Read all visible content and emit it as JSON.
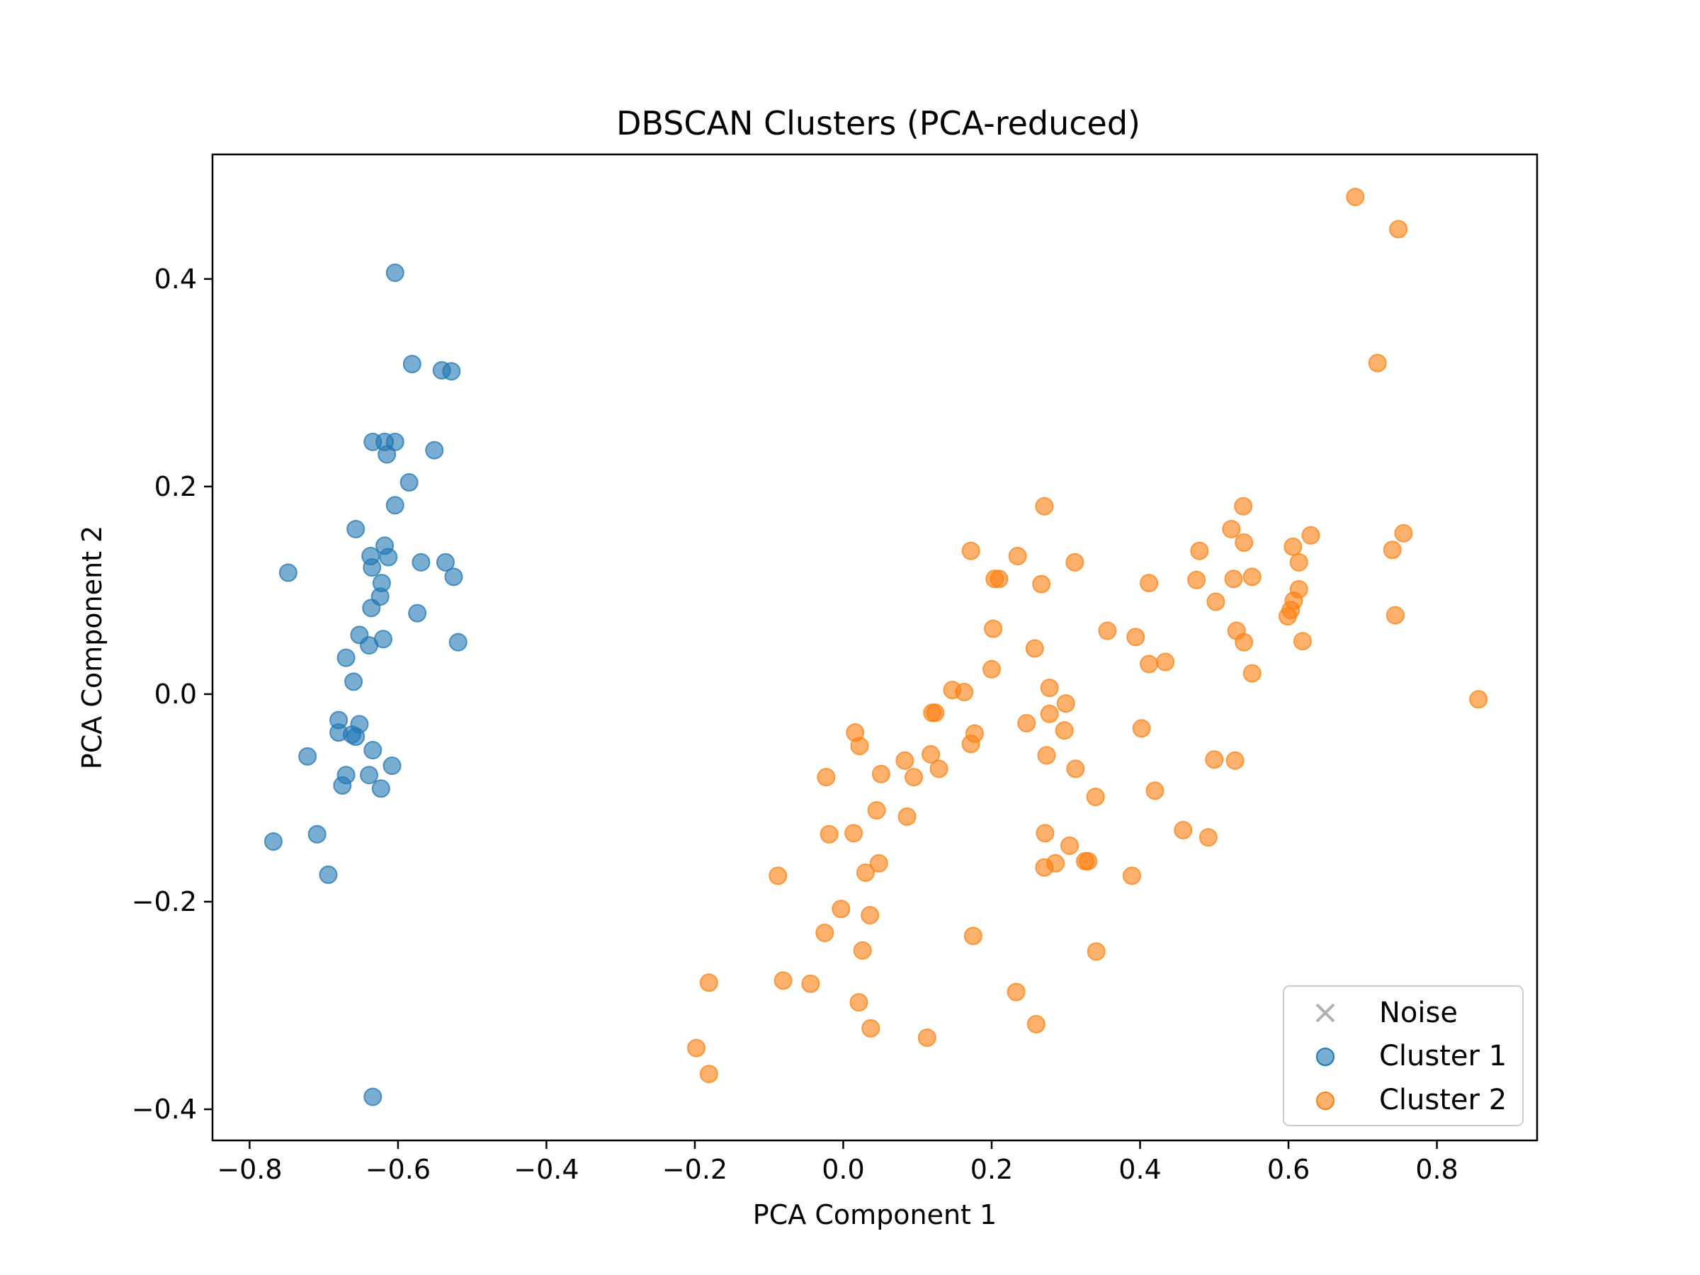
{
  "chart_data": {
    "type": "scatter",
    "title": "DBSCAN Clusters (PCA-reduced)",
    "xlabel": "PCA Component 1",
    "ylabel": "PCA Component 2",
    "xlim": [
      -0.85,
      0.935
    ],
    "ylim": [
      -0.43,
      0.52
    ],
    "x_ticks": [
      -0.8,
      -0.6,
      -0.4,
      -0.2,
      0.0,
      0.2,
      0.4,
      0.6,
      0.8
    ],
    "x_tick_labels": [
      "−0.8",
      "−0.6",
      "−0.4",
      "−0.2",
      "0.0",
      "0.2",
      "0.4",
      "0.6",
      "0.8"
    ],
    "y_ticks": [
      -0.4,
      -0.2,
      0.0,
      0.2,
      0.4
    ],
    "y_tick_labels": [
      "−0.4",
      "−0.2",
      "0.0",
      "0.2",
      "0.4"
    ],
    "grid": false,
    "legend_position": "lower right",
    "series": [
      {
        "name": "Noise",
        "marker": "x",
        "color": "#b0b0b0",
        "points": []
      },
      {
        "name": "Cluster 1",
        "marker": "o",
        "color": "#1f77b4",
        "points": [
          [
            -0.604,
            0.406
          ],
          [
            -0.581,
            0.318
          ],
          [
            -0.541,
            0.312
          ],
          [
            -0.528,
            0.311
          ],
          [
            -0.634,
            0.243
          ],
          [
            -0.618,
            0.243
          ],
          [
            -0.604,
            0.243
          ],
          [
            -0.615,
            0.231
          ],
          [
            -0.551,
            0.235
          ],
          [
            -0.585,
            0.204
          ],
          [
            -0.604,
            0.182
          ],
          [
            -0.657,
            0.159
          ],
          [
            -0.748,
            0.117
          ],
          [
            -0.618,
            0.143
          ],
          [
            -0.637,
            0.133
          ],
          [
            -0.613,
            0.132
          ],
          [
            -0.569,
            0.127
          ],
          [
            -0.536,
            0.127
          ],
          [
            -0.635,
            0.122
          ],
          [
            -0.525,
            0.113
          ],
          [
            -0.622,
            0.107
          ],
          [
            -0.624,
            0.094
          ],
          [
            -0.636,
            0.083
          ],
          [
            -0.574,
            0.078
          ],
          [
            -0.652,
            0.057
          ],
          [
            -0.639,
            0.047
          ],
          [
            -0.62,
            0.053
          ],
          [
            -0.519,
            0.05
          ],
          [
            -0.67,
            0.035
          ],
          [
            -0.66,
            0.012
          ],
          [
            -0.68,
            -0.025
          ],
          [
            -0.652,
            -0.029
          ],
          [
            -0.68,
            -0.037
          ],
          [
            -0.662,
            -0.039
          ],
          [
            -0.657,
            -0.041
          ],
          [
            -0.634,
            -0.054
          ],
          [
            -0.722,
            -0.06
          ],
          [
            -0.608,
            -0.069
          ],
          [
            -0.67,
            -0.078
          ],
          [
            -0.639,
            -0.078
          ],
          [
            -0.675,
            -0.088
          ],
          [
            -0.623,
            -0.091
          ],
          [
            -0.709,
            -0.135
          ],
          [
            -0.768,
            -0.142
          ],
          [
            -0.694,
            -0.174
          ],
          [
            -0.634,
            -0.388
          ]
        ]
      },
      {
        "name": "Cluster 2",
        "marker": "o",
        "color": "#ff7f0e",
        "points": [
          [
            0.69,
            0.479
          ],
          [
            0.748,
            0.448
          ],
          [
            0.72,
            0.319
          ],
          [
            0.271,
            0.181
          ],
          [
            0.539,
            0.181
          ],
          [
            0.755,
            0.155
          ],
          [
            0.63,
            0.153
          ],
          [
            0.523,
            0.159
          ],
          [
            0.54,
            0.146
          ],
          [
            0.606,
            0.142
          ],
          [
            0.74,
            0.139
          ],
          [
            0.48,
            0.138
          ],
          [
            0.172,
            0.138
          ],
          [
            0.235,
            0.133
          ],
          [
            0.312,
            0.127
          ],
          [
            0.614,
            0.127
          ],
          [
            0.551,
            0.113
          ],
          [
            0.526,
            0.111
          ],
          [
            0.476,
            0.11
          ],
          [
            0.204,
            0.111
          ],
          [
            0.21,
            0.111
          ],
          [
            0.267,
            0.106
          ],
          [
            0.412,
            0.107
          ],
          [
            0.614,
            0.101
          ],
          [
            0.502,
            0.089
          ],
          [
            0.607,
            0.09
          ],
          [
            0.603,
            0.081
          ],
          [
            0.599,
            0.075
          ],
          [
            0.744,
            0.076
          ],
          [
            0.202,
            0.063
          ],
          [
            0.356,
            0.061
          ],
          [
            0.53,
            0.061
          ],
          [
            0.394,
            0.055
          ],
          [
            0.54,
            0.05
          ],
          [
            0.619,
            0.051
          ],
          [
            0.258,
            0.044
          ],
          [
            0.434,
            0.031
          ],
          [
            0.412,
            0.029
          ],
          [
            0.2,
            0.024
          ],
          [
            0.551,
            0.02
          ],
          [
            0.147,
            0.004
          ],
          [
            0.163,
            0.002
          ],
          [
            0.278,
            0.006
          ],
          [
            0.3,
            -0.009
          ],
          [
            0.856,
            -0.005
          ],
          [
            0.12,
            -0.018
          ],
          [
            0.124,
            -0.018
          ],
          [
            0.278,
            -0.019
          ],
          [
            0.247,
            -0.028
          ],
          [
            0.402,
            -0.033
          ],
          [
            0.298,
            -0.035
          ],
          [
            0.016,
            -0.037
          ],
          [
            0.177,
            -0.038
          ],
          [
            0.022,
            -0.05
          ],
          [
            0.172,
            -0.048
          ],
          [
            0.118,
            -0.058
          ],
          [
            0.274,
            -0.059
          ],
          [
            0.083,
            -0.064
          ],
          [
            0.5,
            -0.063
          ],
          [
            0.528,
            -0.064
          ],
          [
            0.129,
            -0.072
          ],
          [
            0.313,
            -0.072
          ],
          [
            0.051,
            -0.077
          ],
          [
            0.095,
            -0.08
          ],
          [
            -0.023,
            -0.08
          ],
          [
            0.42,
            -0.093
          ],
          [
            0.34,
            -0.099
          ],
          [
            0.045,
            -0.112
          ],
          [
            0.086,
            -0.118
          ],
          [
            0.458,
            -0.131
          ],
          [
            0.492,
            -0.138
          ],
          [
            0.272,
            -0.134
          ],
          [
            -0.019,
            -0.135
          ],
          [
            0.014,
            -0.134
          ],
          [
            0.305,
            -0.146
          ],
          [
            0.048,
            -0.163
          ],
          [
            0.286,
            -0.163
          ],
          [
            0.33,
            -0.161
          ],
          [
            0.326,
            -0.161
          ],
          [
            0.271,
            -0.167
          ],
          [
            0.03,
            -0.172
          ],
          [
            -0.088,
            -0.175
          ],
          [
            0.389,
            -0.175
          ],
          [
            -0.003,
            -0.207
          ],
          [
            0.036,
            -0.213
          ],
          [
            -0.025,
            -0.23
          ],
          [
            0.175,
            -0.233
          ],
          [
            0.026,
            -0.247
          ],
          [
            0.341,
            -0.248
          ],
          [
            -0.181,
            -0.278
          ],
          [
            -0.081,
            -0.276
          ],
          [
            -0.044,
            -0.279
          ],
          [
            0.233,
            -0.287
          ],
          [
            0.021,
            -0.297
          ],
          [
            0.26,
            -0.318
          ],
          [
            0.037,
            -0.322
          ],
          [
            0.113,
            -0.331
          ],
          [
            -0.198,
            -0.341
          ],
          [
            -0.181,
            -0.366
          ]
        ]
      }
    ]
  }
}
